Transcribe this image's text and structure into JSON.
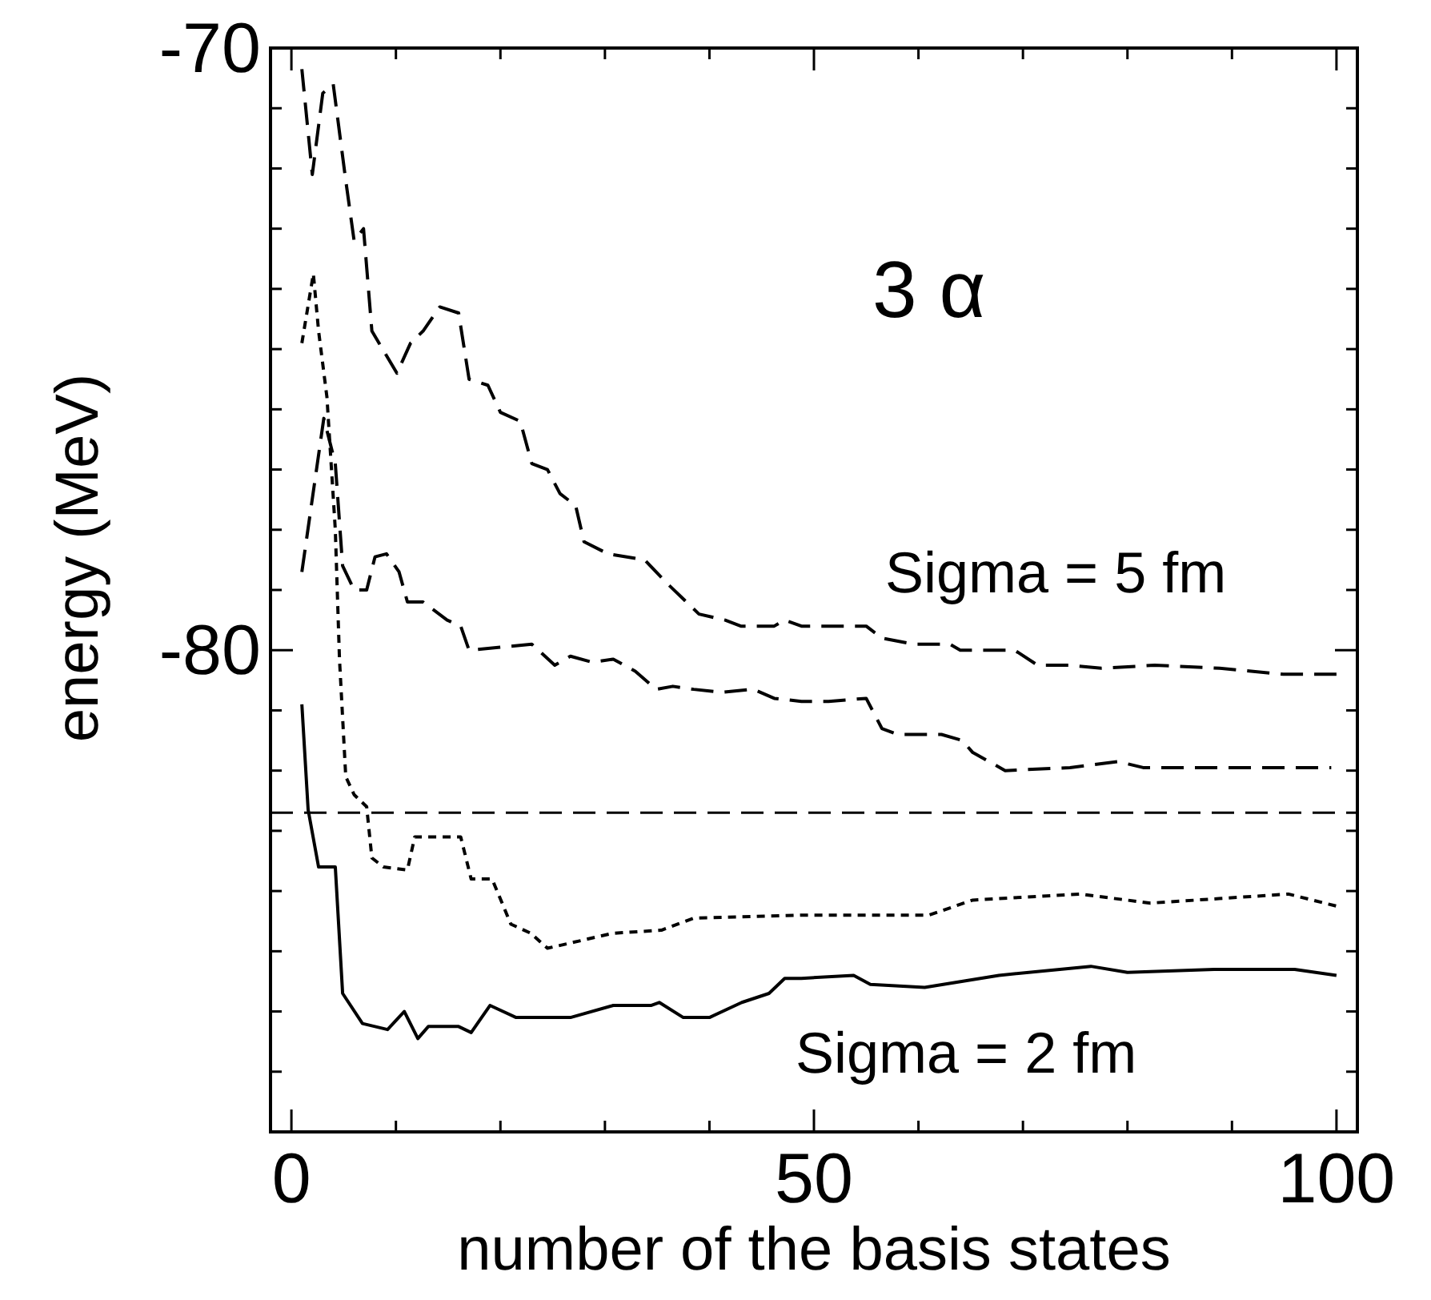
{
  "chart_data": {
    "type": "line",
    "xlabel": "number of the basis states",
    "ylabel": "energy (MeV)",
    "xlim": [
      -2,
      102
    ],
    "ylim": [
      -88,
      -70
    ],
    "xticks": [
      0,
      {
        "value": 10,
        "label": null
      },
      {
        "value": 20,
        "label": null
      },
      {
        "value": 30,
        "label": null
      },
      {
        "value": 40,
        "label": null
      },
      50,
      {
        "value": 60,
        "label": null
      },
      {
        "value": 70,
        "label": null
      },
      {
        "value": 80,
        "label": null
      },
      {
        "value": 90,
        "label": null
      },
      100
    ],
    "yticks": [
      {
        "value": -88,
        "label": null
      },
      {
        "value": -87,
        "label": null
      },
      {
        "value": -86,
        "label": null
      },
      {
        "value": -85,
        "label": null
      },
      {
        "value": -84,
        "label": null
      },
      {
        "value": -83,
        "label": null
      },
      {
        "value": -82,
        "label": null
      },
      {
        "value": -81,
        "label": null
      },
      -80,
      {
        "value": -79,
        "label": null
      },
      {
        "value": -78,
        "label": null
      },
      {
        "value": -77,
        "label": null
      },
      {
        "value": -76,
        "label": null
      },
      {
        "value": -75,
        "label": null
      },
      {
        "value": -74,
        "label": null
      },
      {
        "value": -73,
        "label": null
      },
      {
        "value": -72,
        "label": null
      },
      {
        "value": -71,
        "label": null
      },
      -70
    ],
    "grid": false,
    "marker": "none",
    "series": [
      {
        "color": "#000000",
        "line_style": "dashed",
        "x": [
          1,
          2,
          3,
          4,
          5.2,
          6,
          6.9,
          7.7,
          10.1,
          11.4,
          12.6,
          14.2,
          16,
          17,
          18.8,
          20,
          21.9,
          23,
          24.5,
          25.7,
          27.2,
          28,
          30.3,
          33.8,
          36,
          39,
          41.5,
          43,
          46.2,
          47.2,
          48.8,
          50.8,
          55,
          56.5,
          59.5,
          63,
          64,
          67.2,
          69.2,
          71.4,
          74.5,
          77.5,
          82.6,
          88.8,
          94.9,
          100
        ],
        "values": [
          -70.35,
          -72.1,
          -70.75,
          -70.6,
          -72.2,
          -73.2,
          -73.0,
          -74.7,
          -75.4,
          -74.9,
          -74.7,
          -74.3,
          -74.4,
          -75.5,
          -75.6,
          -76.05,
          -76.2,
          -76.9,
          -77.0,
          -77.4,
          -77.6,
          -78.2,
          -78.4,
          -78.5,
          -78.9,
          -79.4,
          -79.5,
          -79.6,
          -79.6,
          -79.5,
          -79.6,
          -79.6,
          -79.6,
          -79.8,
          -79.9,
          -79.9,
          -80.0,
          -80.0,
          -80.0,
          -80.25,
          -80.25,
          -80.3,
          -80.25,
          -80.3,
          -80.4,
          -80.4
        ]
      },
      {
        "color": "#000000",
        "line_style": "dashed",
        "x": [
          1,
          3.1,
          4.2,
          4.9,
          6,
          7.2,
          8,
          9.1,
          10.3,
          11.1,
          12.6,
          14.9,
          16.2,
          17,
          20,
          23,
          25.2,
          26.7,
          28.8,
          30.8,
          32.9,
          34.9,
          36.5,
          38.5,
          41.1,
          44.2,
          46.2,
          48.8,
          51.4,
          55,
          56.5,
          58,
          62.2,
          64.2,
          65.2,
          68.3,
          74.5,
          79.1,
          81.5,
          89.2,
          99.5
        ],
        "values": [
          -78.7,
          -76.15,
          -76.9,
          -78.6,
          -79.0,
          -79.0,
          -78.45,
          -78.4,
          -78.7,
          -79.2,
          -79.2,
          -79.5,
          -79.6,
          -80.0,
          -79.95,
          -79.9,
          -80.25,
          -80.1,
          -80.2,
          -80.15,
          -80.35,
          -80.65,
          -80.6,
          -80.65,
          -80.7,
          -80.65,
          -80.8,
          -80.85,
          -80.85,
          -80.8,
          -81.3,
          -81.4,
          -81.4,
          -81.5,
          -81.7,
          -82.0,
          -81.95,
          -81.85,
          -81.95,
          -81.95,
          -81.95
        ]
      },
      {
        "color": "#000000",
        "line_style": "dotted",
        "x": [
          1,
          2.1,
          2.6,
          3.4,
          4.2,
          4.6,
          5.2,
          6,
          7.2,
          7.7,
          8.8,
          11.1,
          11.8,
          14.4,
          16.2,
          17.2,
          19.2,
          21,
          22.9,
          24.5,
          30.8,
          35.4,
          38.5,
          48.8,
          61,
          65.2,
          75.4,
          82.2,
          95.4,
          100
        ],
        "values": [
          -74.9,
          -73.75,
          -74.7,
          -75.8,
          -78.0,
          -80.15,
          -82.1,
          -82.4,
          -82.6,
          -83.45,
          -83.6,
          -83.65,
          -83.1,
          -83.1,
          -83.1,
          -83.8,
          -83.8,
          -84.55,
          -84.7,
          -84.95,
          -84.7,
          -84.65,
          -84.45,
          -84.4,
          -84.4,
          -84.15,
          -84.05,
          -84.2,
          -84.05,
          -84.25
        ]
      },
      {
        "color": "#000000",
        "line_style": "solid",
        "x": [
          1,
          1.6,
          2.6,
          4.2,
          4.9,
          6.8,
          9.2,
          10.8,
          12.1,
          13.1,
          16,
          17.2,
          19,
          21.5,
          26.7,
          30.8,
          34.4,
          35.2,
          37.5,
          40,
          43.1,
          45.7,
          47.2,
          48.8,
          53.8,
          55.4,
          60.6,
          67.7,
          76.5,
          80,
          88.3,
          96,
          100
        ],
        "values": [
          -80.9,
          -82.65,
          -83.6,
          -83.6,
          -85.7,
          -86.2,
          -86.3,
          -86.0,
          -86.45,
          -86.25,
          -86.25,
          -86.35,
          -85.9,
          -86.1,
          -86.1,
          -85.9,
          -85.9,
          -85.85,
          -86.1,
          -86.1,
          -85.85,
          -85.7,
          -85.45,
          -85.45,
          -85.4,
          -85.55,
          -85.6,
          -85.4,
          -85.25,
          -85.35,
          -85.3,
          -85.3,
          -85.4
        ]
      }
    ],
    "ref_lines": [
      {
        "axis": "y",
        "value": -82.7,
        "line_style": "dashed",
        "color": "#000000"
      }
    ],
    "annotations": [
      "3 α",
      "Sigma = 5 fm",
      "Sigma = 2 fm"
    ]
  }
}
